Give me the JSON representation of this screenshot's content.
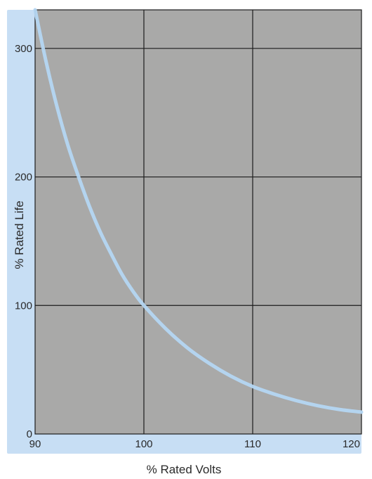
{
  "chart_data": {
    "type": "line",
    "title": "",
    "xlabel": "% Rated Volts",
    "ylabel": "% Rated Life",
    "xlim": [
      90,
      120
    ],
    "ylim": [
      0,
      330
    ],
    "x_ticks": [
      90,
      100,
      110,
      120
    ],
    "y_ticks": [
      0,
      100,
      200,
      300
    ],
    "grid": true,
    "legend": "none",
    "series": [
      {
        "x": [
          90,
          91,
          92,
          93,
          94,
          95,
          96,
          97,
          98,
          99,
          100,
          102,
          104,
          106,
          108,
          110,
          112,
          114,
          116,
          118,
          120
        ],
        "y": [
          330,
          290,
          255,
          225,
          200,
          177,
          157,
          140,
          124,
          111,
          100,
          82,
          67,
          55,
          45,
          37,
          31,
          26,
          22,
          19,
          17
        ]
      }
    ]
  },
  "colors": {
    "frame": "#c7def4",
    "plot_background": "#a9a9a8",
    "grid": "#1c1c1c",
    "curve": "#b4d6f2",
    "text": "#2a2a2a"
  }
}
